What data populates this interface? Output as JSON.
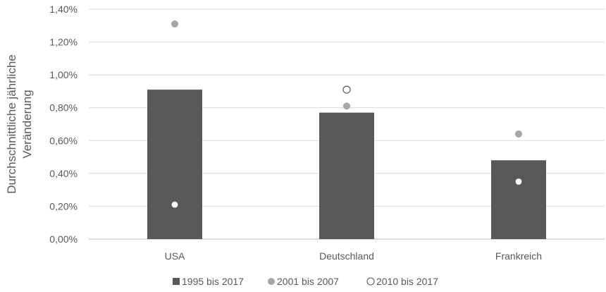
{
  "chart_data": {
    "type": "bar",
    "title": "",
    "xlabel": "",
    "ylabel": [
      "Durchschnittliche  jährliche",
      "Veränderung"
    ],
    "categories": [
      "USA",
      "Deutschland",
      "Frankreich"
    ],
    "ylim": [
      0,
      1.4
    ],
    "yticks": [
      0,
      0.2,
      0.4,
      0.6,
      0.8,
      1.0,
      1.2,
      1.4
    ],
    "ytick_labels": [
      "0,00%",
      "0,20%",
      "0,40%",
      "0,60%",
      "0,80%",
      "1,00%",
      "1,20%",
      "1,40%"
    ],
    "grid": true,
    "legend_position": "bottom",
    "series": [
      {
        "name": "1995 bis 2017",
        "kind": "bar",
        "color": "#595959",
        "values": [
          0.91,
          0.77,
          0.48
        ]
      },
      {
        "name": "2001 bis 2007",
        "kind": "marker",
        "marker": "filled-circle",
        "color": "#a6a6a6",
        "values": [
          1.31,
          0.81,
          0.64
        ]
      },
      {
        "name": "2010 bis 2017",
        "kind": "marker",
        "marker": "hollow-circle",
        "color": "#ffffff",
        "stroke": "#595959",
        "values": [
          0.21,
          0.91,
          0.35
        ]
      }
    ]
  },
  "colors": {
    "text": "#595959",
    "grid": "#d9d9d9",
    "axis": "#bfbfbf"
  }
}
